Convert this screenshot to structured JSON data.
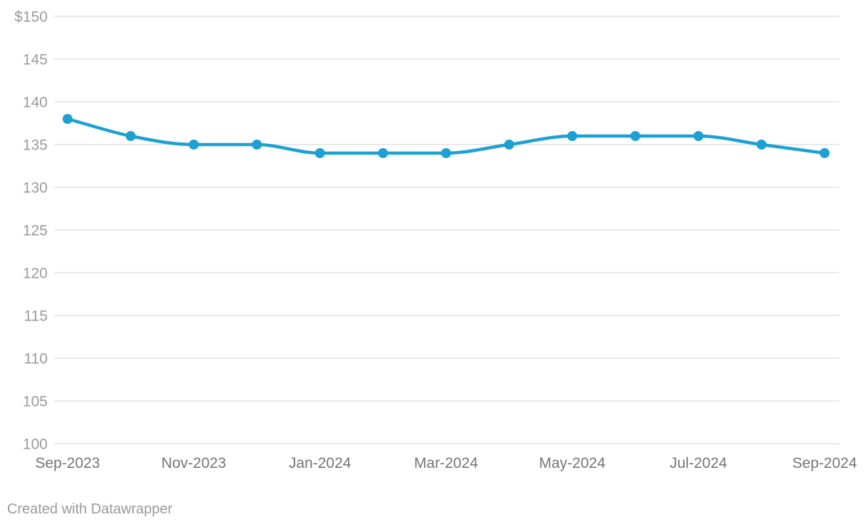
{
  "chart_data": {
    "type": "line",
    "title": "",
    "x": [
      "Sep-2023",
      "Oct-2023",
      "Nov-2023",
      "Dec-2023",
      "Jan-2024",
      "Feb-2024",
      "Mar-2024",
      "Apr-2024",
      "May-2024",
      "Jun-2024",
      "Jul-2024",
      "Aug-2024",
      "Sep-2024"
    ],
    "values": [
      138,
      136,
      135,
      135,
      134,
      134,
      134,
      135,
      136,
      136,
      136,
      135,
      134
    ],
    "ylim": [
      100,
      150
    ],
    "y_tick_interval": 5,
    "y_tick_values": [
      150,
      145,
      140,
      135,
      130,
      125,
      120,
      115,
      110,
      105,
      100
    ],
    "y_tick_labels": [
      "$150",
      "145",
      "140",
      "135",
      "130",
      "125",
      "120",
      "115",
      "110",
      "105",
      "100"
    ],
    "x_tick_labels": [
      "Sep-2023",
      "Nov-2023",
      "Jan-2024",
      "Mar-2024",
      "May-2024",
      "Jul-2024",
      "Sep-2024"
    ],
    "grid": "horizontal",
    "legend_position": "none",
    "line_style": "curved",
    "markers": true
  },
  "colors": {
    "line": "#1da1d2",
    "marker": "#1da1d2",
    "grid": "#e9e9e9",
    "y_tick_text": "#9b9b9b",
    "x_tick_text": "#757575",
    "footer_text": "#9a9a9a",
    "background": "#ffffff"
  },
  "footer": {
    "text": "Created with Datawrapper"
  }
}
